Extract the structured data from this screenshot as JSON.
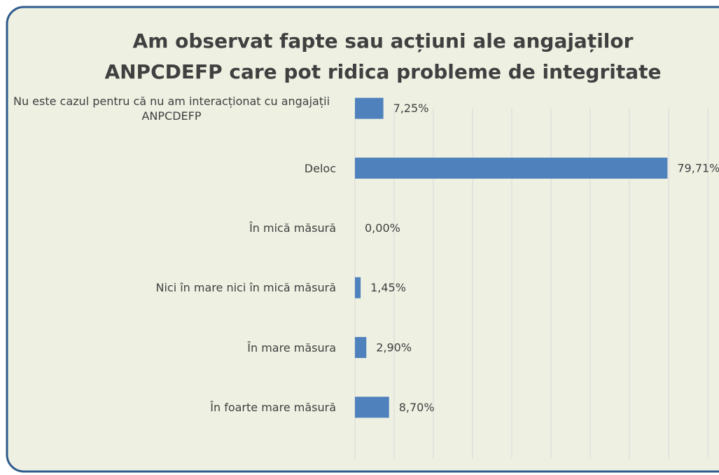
{
  "chart_data": {
    "type": "barh",
    "title": [
      "Am observat fapte sau acțiuni ale angajaților",
      "ANPCDEFP care pot ridica probleme de integritate"
    ],
    "categories": [
      "Nu este cazul pentru că nu am interacționat cu angajații ANPCDEFP",
      "Deloc",
      "În mică măsură",
      "Nici în mare nici în mică măsură",
      "În mare măsura",
      "În foarte mare măsură"
    ],
    "values": [
      7.25,
      79.71,
      0,
      1.45,
      2.9,
      8.7
    ],
    "value_labels": [
      "7,25%",
      "79,71%",
      "0,00%",
      "1,45%",
      "2,90%",
      "8,70%"
    ],
    "color": "#4f81bd",
    "xlim": [
      0,
      90
    ],
    "xticks": [
      0,
      10,
      20,
      30,
      40,
      50,
      60,
      70,
      80,
      90
    ],
    "grid": true
  }
}
